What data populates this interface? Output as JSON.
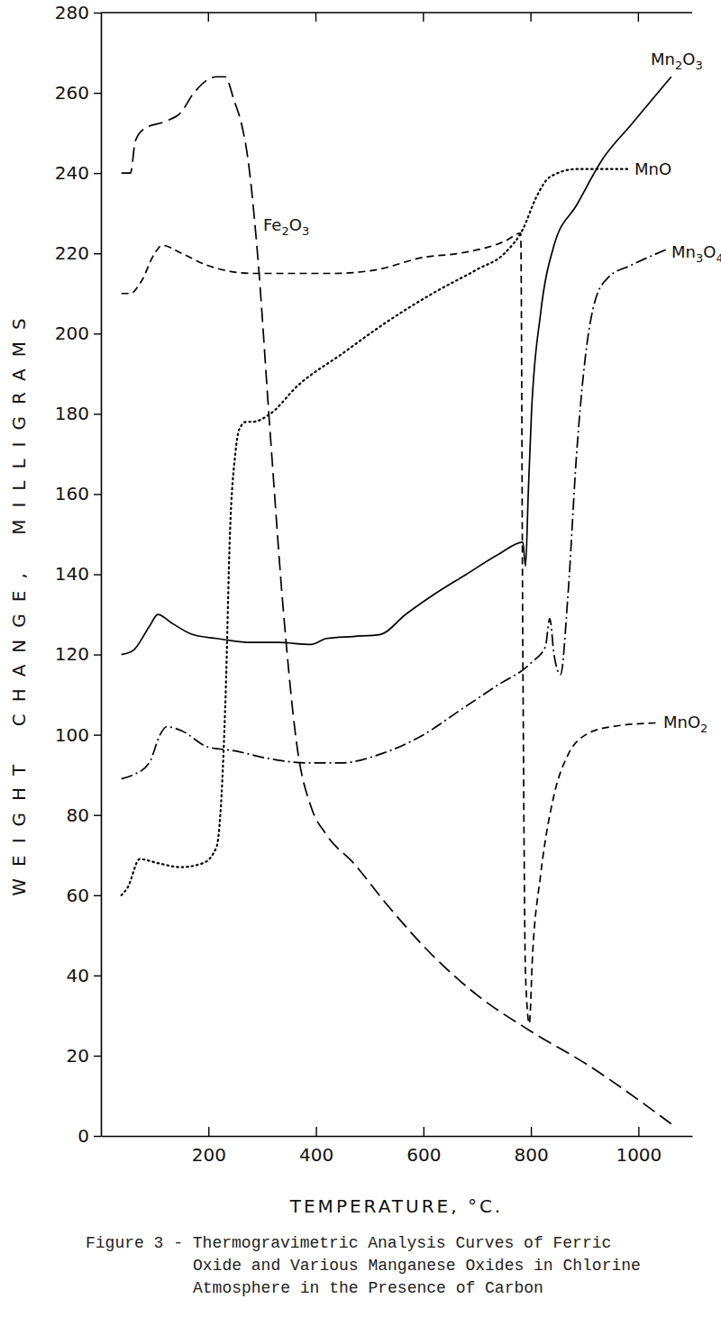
{
  "chart_data": {
    "type": "line",
    "title": "Figure 3 - Thermogravimetric Analysis Curves of Ferric Oxide and Various Manganese Oxides in Chlorine Atmosphere in the Presence of Carbon",
    "x_label": "TEMPERATURE, °C.",
    "y_label": "WEIGHT CHANGE, MILLIGRAMS",
    "xlim": [
      0,
      1100
    ],
    "ylim": [
      0,
      280
    ],
    "xticks": [
      200,
      400,
      600,
      800,
      1000
    ],
    "yticks": [
      0,
      20,
      40,
      60,
      80,
      100,
      120,
      140,
      160,
      180,
      200,
      220,
      240,
      260,
      280
    ],
    "grid": false,
    "series": [
      {
        "name": "Fe2O3",
        "color": "#000000",
        "line_style": "long_dash",
        "x": [
          38,
          55,
          64,
          80,
          122,
          148,
          173,
          215,
          231,
          248,
          262,
          273,
          290,
          315,
          340,
          366,
          391,
          420,
          470,
          530,
          617,
          701,
          801,
          902,
          1061
        ],
        "values": [
          240,
          240,
          248,
          251,
          253,
          255,
          260,
          264,
          264,
          258,
          252,
          244,
          222,
          175,
          130,
          96,
          82,
          75,
          68,
          58,
          45,
          35,
          26,
          18,
          3
        ]
      },
      {
        "name": "MnO",
        "color": "#000000",
        "line_style": "dotted",
        "x": [
          38,
          50,
          72,
          106,
          148,
          190,
          215,
          232,
          240,
          250,
          257,
          270,
          282,
          315,
          366,
          449,
          533,
          617,
          700,
          751,
          785,
          810,
          835,
          885,
          986
        ],
        "values": [
          60,
          62,
          69,
          68,
          67,
          68,
          72,
          110,
          150,
          170,
          176,
          178,
          178,
          180,
          187,
          195,
          203,
          210,
          216,
          220,
          226,
          234,
          239,
          241,
          241
        ]
      },
      {
        "name": "Mn2O3",
        "color": "#000000",
        "line_style": "solid",
        "x": [
          38,
          60,
          90,
          106,
          130,
          170,
          215,
          280,
          330,
          391,
          420,
          470,
          520,
          567,
          620,
          680,
          740,
          785,
          790,
          795,
          801,
          818,
          843,
          885,
          936,
          986,
          1061
        ],
        "values": [
          120,
          121,
          127,
          130,
          128,
          125,
          124,
          123,
          123,
          122.5,
          124,
          124.5,
          125,
          130,
          135,
          140,
          145,
          148,
          142,
          160,
          180,
          205,
          222,
          232,
          244,
          252,
          264
        ]
      },
      {
        "name": "Mn3O4",
        "color": "#000000",
        "line_style": "dash_dot",
        "x": [
          38,
          60,
          90,
          110,
          122,
          150,
          198,
          248,
          315,
          382,
          449,
          516,
          600,
          667,
          734,
          801,
          827,
          835,
          843,
          855,
          869,
          885,
          902,
          919,
          944,
          986,
          1053
        ],
        "values": [
          89,
          90,
          93,
          100,
          102,
          101,
          97,
          96,
          94,
          93,
          93,
          95,
          100,
          106,
          112,
          118,
          122,
          129,
          120,
          115,
          135,
          170,
          195,
          208,
          214,
          217,
          221
        ]
      },
      {
        "name": "MnO2",
        "color": "#000000",
        "line_style": "dashed",
        "x": [
          38,
          55,
          75,
          100,
          114,
          150,
          198,
          282,
          350,
          433,
          516,
          600,
          667,
          751,
          781,
          785,
          790,
          797,
          803,
          818,
          843,
          869,
          902,
          950,
          1040
        ],
        "values": [
          210,
          210,
          213,
          220,
          222,
          220,
          217,
          215,
          215,
          215,
          216,
          219,
          220,
          223,
          225,
          120,
          40,
          28,
          45,
          65,
          85,
          95,
          100,
          102,
          103
        ]
      }
    ]
  }
}
